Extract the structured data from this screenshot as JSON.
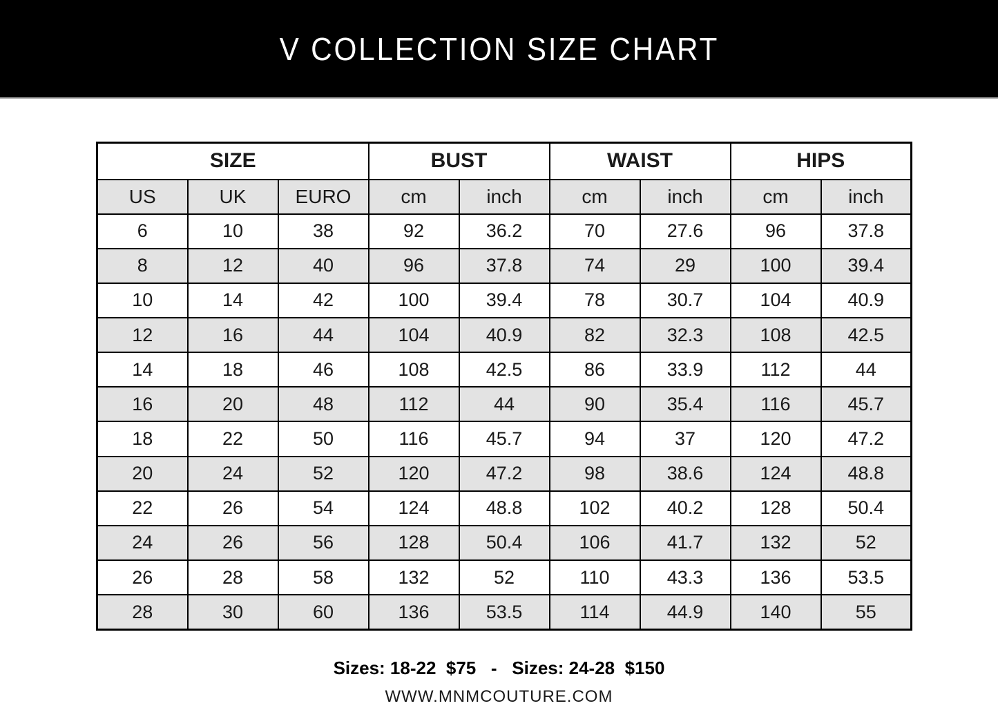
{
  "title": "V COLLECTION SIZE CHART",
  "colors": {
    "banner_bg": "#000000",
    "banner_text": "#ffffff",
    "row_alt_bg": "#e3e3e3",
    "border": "#000000"
  },
  "chart_data": {
    "type": "table",
    "title": "V COLLECTION SIZE CHART",
    "column_groups": [
      {
        "label": "SIZE",
        "span": 3
      },
      {
        "label": "BUST",
        "span": 2
      },
      {
        "label": "WAIST",
        "span": 2
      },
      {
        "label": "HIPS",
        "span": 2
      }
    ],
    "columns": [
      "US",
      "UK",
      "EURO",
      "cm",
      "inch",
      "cm",
      "inch",
      "cm",
      "inch"
    ],
    "rows": [
      [
        "6",
        "10",
        "38",
        "92",
        "36.2",
        "70",
        "27.6",
        "96",
        "37.8"
      ],
      [
        "8",
        "12",
        "40",
        "96",
        "37.8",
        "74",
        "29",
        "100",
        "39.4"
      ],
      [
        "10",
        "14",
        "42",
        "100",
        "39.4",
        "78",
        "30.7",
        "104",
        "40.9"
      ],
      [
        "12",
        "16",
        "44",
        "104",
        "40.9",
        "82",
        "32.3",
        "108",
        "42.5"
      ],
      [
        "14",
        "18",
        "46",
        "108",
        "42.5",
        "86",
        "33.9",
        "112",
        "44"
      ],
      [
        "16",
        "20",
        "48",
        "112",
        "44",
        "90",
        "35.4",
        "116",
        "45.7"
      ],
      [
        "18",
        "22",
        "50",
        "116",
        "45.7",
        "94",
        "37",
        "120",
        "47.2"
      ],
      [
        "20",
        "24",
        "52",
        "120",
        "47.2",
        "98",
        "38.6",
        "124",
        "48.8"
      ],
      [
        "22",
        "26",
        "54",
        "124",
        "48.8",
        "102",
        "40.2",
        "128",
        "50.4"
      ],
      [
        "24",
        "26",
        "56",
        "128",
        "50.4",
        "106",
        "41.7",
        "132",
        "52"
      ],
      [
        "26",
        "28",
        "58",
        "132",
        "52",
        "110",
        "43.3",
        "136",
        "53.5"
      ],
      [
        "28",
        "30",
        "60",
        "136",
        "53.5",
        "114",
        "44.9",
        "140",
        "55"
      ]
    ]
  },
  "footer": {
    "pricing": "Sizes: 18-22  $75   -   Sizes: 24-28  $150",
    "website": "WWW.MNMCOUTURE.COM"
  }
}
